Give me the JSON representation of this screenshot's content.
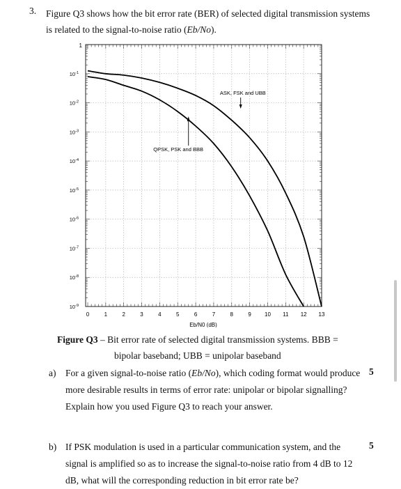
{
  "question": {
    "number": "3.",
    "text_a": "Figure Q3 shows how the bit error rate (BER) of selected digital transmission systems is related to the signal-to-noise ratio (",
    "ratio_symbol": "Eb/No",
    "text_b": ")."
  },
  "chart_data": {
    "type": "line",
    "xlabel": "Eb/N0 (dB)",
    "ylabel": "",
    "x_ticks": [
      "0",
      "1",
      "2",
      "3",
      "4",
      "5",
      "6",
      "7",
      "8",
      "9",
      "10",
      "11",
      "12",
      "13"
    ],
    "y_ticks": [
      "10^-1",
      "10^-2",
      "10^-3",
      "10^-4",
      "10^-5",
      "10^-6",
      "10^-7",
      "10^-8",
      "10^-9"
    ],
    "top_label": "1",
    "xlim": [
      0,
      13
    ],
    "ylim_log10": [
      -9,
      0
    ],
    "y_scale": "log",
    "grid": true,
    "series": [
      {
        "name": "QPSK, PSK and BBB",
        "x": [
          0,
          1,
          2,
          3,
          4,
          5,
          6,
          7,
          8,
          9,
          10,
          11,
          12
        ],
        "y_log10": [
          -1.1,
          -1.2,
          -1.4,
          -1.6,
          -1.9,
          -2.3,
          -2.8,
          -3.4,
          -4.2,
          -5.2,
          -6.4,
          -7.9,
          -9.0
        ]
      },
      {
        "name": "ASK, FSK and UBB",
        "x": [
          0,
          1,
          2,
          3,
          4,
          5,
          6,
          7,
          8,
          9,
          10,
          11,
          12,
          13
        ],
        "y_log10": [
          -0.9,
          -1.0,
          -1.05,
          -1.15,
          -1.3,
          -1.5,
          -1.75,
          -2.1,
          -2.6,
          -3.2,
          -4.0,
          -5.1,
          -6.6,
          -9.0
        ]
      }
    ],
    "annotations": [
      {
        "text": "ASK, FSK and UBB",
        "x": 8.7,
        "y_log10": -2.2
      },
      {
        "text": "QPSK, PSK and BBB",
        "x": 5.5,
        "y_log10": -3.1
      }
    ]
  },
  "caption": {
    "label": "Figure Q3",
    "text": " – Bit error rate of selected digital transmission systems. BBB =",
    "line2": "bipolar baseband; UBB = unipolar baseband"
  },
  "parts": [
    {
      "letter": "a)",
      "marks": "5",
      "text_a": "For a given signal-to-noise ratio (",
      "ratio_symbol": "Eb/No",
      "text_b": "), which coding format would produce more desirable results in terms of error rate: unipolar or bipolar signalling? Explain how you used Figure Q3 to reach your answer."
    },
    {
      "letter": "b)",
      "marks": "5",
      "text": "If PSK modulation is used in a particular communication system, and the signal is amplified so as to increase the signal-to-noise ratio from 4 dB to 12 dB, what will the corresponding reduction in bit error rate be?"
    }
  ]
}
